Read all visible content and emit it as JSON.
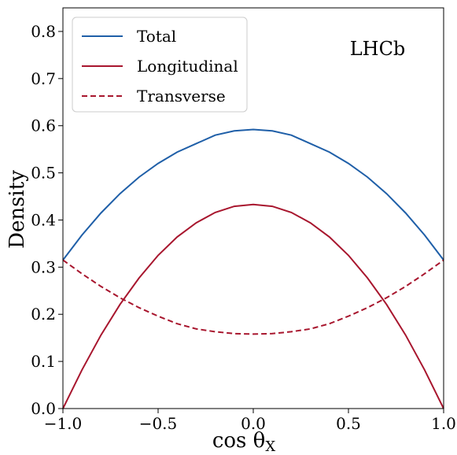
{
  "chart_data": {
    "type": "line",
    "title": "",
    "xlabel": "cos θ",
    "xlabel_sub": "X",
    "ylabel": "Density",
    "xlim": [
      -1.0,
      1.0
    ],
    "ylim": [
      0.0,
      0.85
    ],
    "xticks": [
      -1.0,
      -0.5,
      0.0,
      0.5,
      1.0
    ],
    "xtick_labels": [
      "−1.0",
      "−0.5",
      "0.0",
      "0.5",
      "1.0"
    ],
    "yticks": [
      0.0,
      0.1,
      0.2,
      0.3,
      0.4,
      0.5,
      0.6,
      0.7,
      0.8
    ],
    "ytick_labels": [
      "0.0",
      "0.1",
      "0.2",
      "0.3",
      "0.4",
      "0.5",
      "0.6",
      "0.7",
      "0.8"
    ],
    "grid": false,
    "legend_position": "top-left",
    "annotation": "LHCb",
    "series": [
      {
        "name": "Total",
        "color": "#1f5fa8",
        "style": "solid",
        "x": [
          -1.0,
          -0.9,
          -0.8,
          -0.7,
          -0.6,
          -0.5,
          -0.4,
          -0.3,
          -0.2,
          -0.1,
          0.0,
          0.1,
          0.2,
          0.3,
          0.4,
          0.5,
          0.6,
          0.7,
          0.8,
          0.9,
          1.0
        ],
        "y": [
          0.315,
          0.368,
          0.415,
          0.456,
          0.491,
          0.52,
          0.544,
          0.562,
          0.58,
          0.589,
          0.592,
          0.589,
          0.58,
          0.562,
          0.544,
          0.52,
          0.491,
          0.456,
          0.415,
          0.368,
          0.315
        ]
      },
      {
        "name": "Longitudinal",
        "color": "#a8162e",
        "style": "solid",
        "x": [
          -1.0,
          -0.9,
          -0.8,
          -0.7,
          -0.6,
          -0.5,
          -0.4,
          -0.3,
          -0.2,
          -0.1,
          0.0,
          0.1,
          0.2,
          0.3,
          0.4,
          0.5,
          0.6,
          0.7,
          0.8,
          0.9,
          1.0
        ],
        "y": [
          0.0,
          0.082,
          0.156,
          0.221,
          0.277,
          0.325,
          0.364,
          0.394,
          0.416,
          0.429,
          0.433,
          0.429,
          0.416,
          0.394,
          0.364,
          0.325,
          0.277,
          0.221,
          0.156,
          0.082,
          0.0
        ]
      },
      {
        "name": "Transverse",
        "color": "#a8162e",
        "style": "dashed",
        "x": [
          -1.0,
          -0.9,
          -0.8,
          -0.7,
          -0.6,
          -0.5,
          -0.4,
          -0.3,
          -0.2,
          -0.1,
          0.0,
          0.1,
          0.2,
          0.3,
          0.4,
          0.5,
          0.6,
          0.7,
          0.8,
          0.9,
          1.0
        ],
        "y": [
          0.315,
          0.286,
          0.259,
          0.235,
          0.214,
          0.196,
          0.18,
          0.169,
          0.163,
          0.159,
          0.158,
          0.159,
          0.163,
          0.169,
          0.18,
          0.196,
          0.214,
          0.235,
          0.259,
          0.286,
          0.315
        ]
      }
    ]
  }
}
